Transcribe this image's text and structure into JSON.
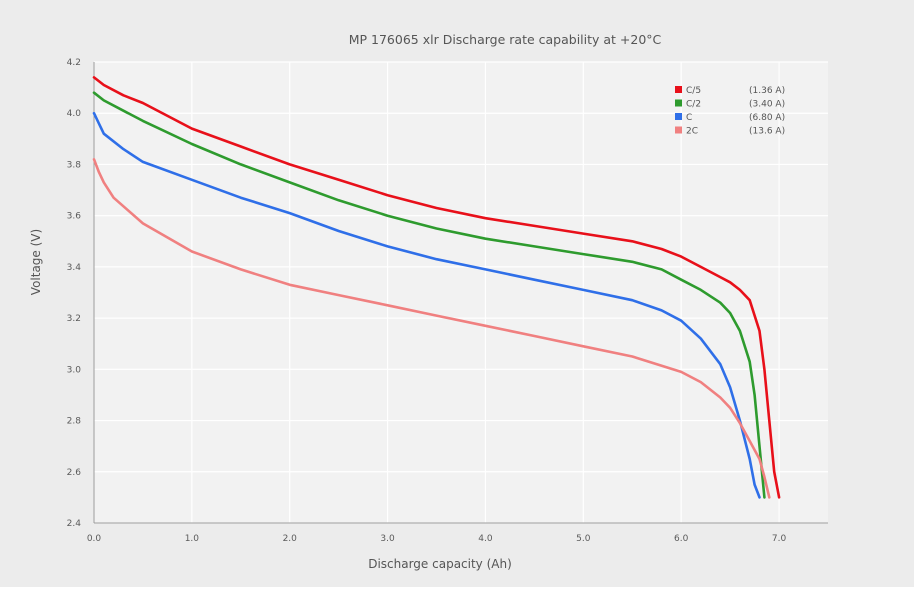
{
  "chart_data": {
    "type": "line",
    "title": "MP 176065 xlr Discharge rate capability at +20°C",
    "xlabel": "Discharge capacity (Ah)",
    "ylabel": "Voltage (V)",
    "xlim": [
      0,
      7.5
    ],
    "ylim": [
      2.4,
      4.2
    ],
    "x_ticks": [
      "0.0",
      "1.0",
      "2.0",
      "3.0",
      "4.0",
      "5.0",
      "6.0",
      "7.0"
    ],
    "y_ticks": [
      "2.4",
      "2.6",
      "2.8",
      "3.0",
      "3.2",
      "3.4",
      "3.6",
      "3.8",
      "4.0",
      "4.2"
    ],
    "grid": true,
    "legend_position": "top-right",
    "series": [
      {
        "name": "C/5",
        "current": "(1.36 A)",
        "color": "#e8101a",
        "points": [
          [
            0,
            4.14
          ],
          [
            0.1,
            4.11
          ],
          [
            0.3,
            4.07
          ],
          [
            0.5,
            4.04
          ],
          [
            1.0,
            3.94
          ],
          [
            1.5,
            3.87
          ],
          [
            2.0,
            3.8
          ],
          [
            2.5,
            3.74
          ],
          [
            3.0,
            3.68
          ],
          [
            3.5,
            3.63
          ],
          [
            4.0,
            3.59
          ],
          [
            4.5,
            3.56
          ],
          [
            5.0,
            3.53
          ],
          [
            5.5,
            3.5
          ],
          [
            5.8,
            3.47
          ],
          [
            6.0,
            3.44
          ],
          [
            6.2,
            3.4
          ],
          [
            6.4,
            3.36
          ],
          [
            6.5,
            3.34
          ],
          [
            6.6,
            3.31
          ],
          [
            6.7,
            3.27
          ],
          [
            6.8,
            3.15
          ],
          [
            6.85,
            3.0
          ],
          [
            6.9,
            2.8
          ],
          [
            6.95,
            2.6
          ],
          [
            7.0,
            2.5
          ]
        ]
      },
      {
        "name": "C/2",
        "current": "(3.40 A)",
        "color": "#2e9b2e",
        "points": [
          [
            0,
            4.08
          ],
          [
            0.1,
            4.05
          ],
          [
            0.3,
            4.01
          ],
          [
            0.5,
            3.97
          ],
          [
            1.0,
            3.88
          ],
          [
            1.5,
            3.8
          ],
          [
            2.0,
            3.73
          ],
          [
            2.5,
            3.66
          ],
          [
            3.0,
            3.6
          ],
          [
            3.5,
            3.55
          ],
          [
            4.0,
            3.51
          ],
          [
            4.5,
            3.48
          ],
          [
            5.0,
            3.45
          ],
          [
            5.5,
            3.42
          ],
          [
            5.8,
            3.39
          ],
          [
            6.0,
            3.35
          ],
          [
            6.2,
            3.31
          ],
          [
            6.4,
            3.26
          ],
          [
            6.5,
            3.22
          ],
          [
            6.6,
            3.15
          ],
          [
            6.7,
            3.03
          ],
          [
            6.75,
            2.9
          ],
          [
            6.8,
            2.7
          ],
          [
            6.85,
            2.5
          ]
        ]
      },
      {
        "name": "C",
        "current": "(6.80 A)",
        "color": "#2f6fe8",
        "points": [
          [
            0,
            4.0
          ],
          [
            0.05,
            3.96
          ],
          [
            0.1,
            3.92
          ],
          [
            0.3,
            3.86
          ],
          [
            0.5,
            3.81
          ],
          [
            1.0,
            3.74
          ],
          [
            1.5,
            3.67
          ],
          [
            2.0,
            3.61
          ],
          [
            2.5,
            3.54
          ],
          [
            3.0,
            3.48
          ],
          [
            3.5,
            3.43
          ],
          [
            4.0,
            3.39
          ],
          [
            4.5,
            3.35
          ],
          [
            5.0,
            3.31
          ],
          [
            5.5,
            3.27
          ],
          [
            5.8,
            3.23
          ],
          [
            6.0,
            3.19
          ],
          [
            6.2,
            3.12
          ],
          [
            6.4,
            3.02
          ],
          [
            6.5,
            2.93
          ],
          [
            6.6,
            2.8
          ],
          [
            6.7,
            2.65
          ],
          [
            6.75,
            2.55
          ],
          [
            6.8,
            2.5
          ]
        ]
      },
      {
        "name": "2C",
        "current": "(13.6 A)",
        "color": "#f08080",
        "points": [
          [
            0,
            3.82
          ],
          [
            0.05,
            3.77
          ],
          [
            0.1,
            3.73
          ],
          [
            0.2,
            3.67
          ],
          [
            0.5,
            3.57
          ],
          [
            1.0,
            3.46
          ],
          [
            1.5,
            3.39
          ],
          [
            2.0,
            3.33
          ],
          [
            2.5,
            3.29
          ],
          [
            3.0,
            3.25
          ],
          [
            3.5,
            3.21
          ],
          [
            4.0,
            3.17
          ],
          [
            4.5,
            3.13
          ],
          [
            5.0,
            3.09
          ],
          [
            5.5,
            3.05
          ],
          [
            6.0,
            2.99
          ],
          [
            6.2,
            2.95
          ],
          [
            6.4,
            2.89
          ],
          [
            6.5,
            2.85
          ],
          [
            6.6,
            2.79
          ],
          [
            6.7,
            2.72
          ],
          [
            6.8,
            2.65
          ],
          [
            6.85,
            2.58
          ],
          [
            6.9,
            2.5
          ]
        ]
      }
    ]
  }
}
